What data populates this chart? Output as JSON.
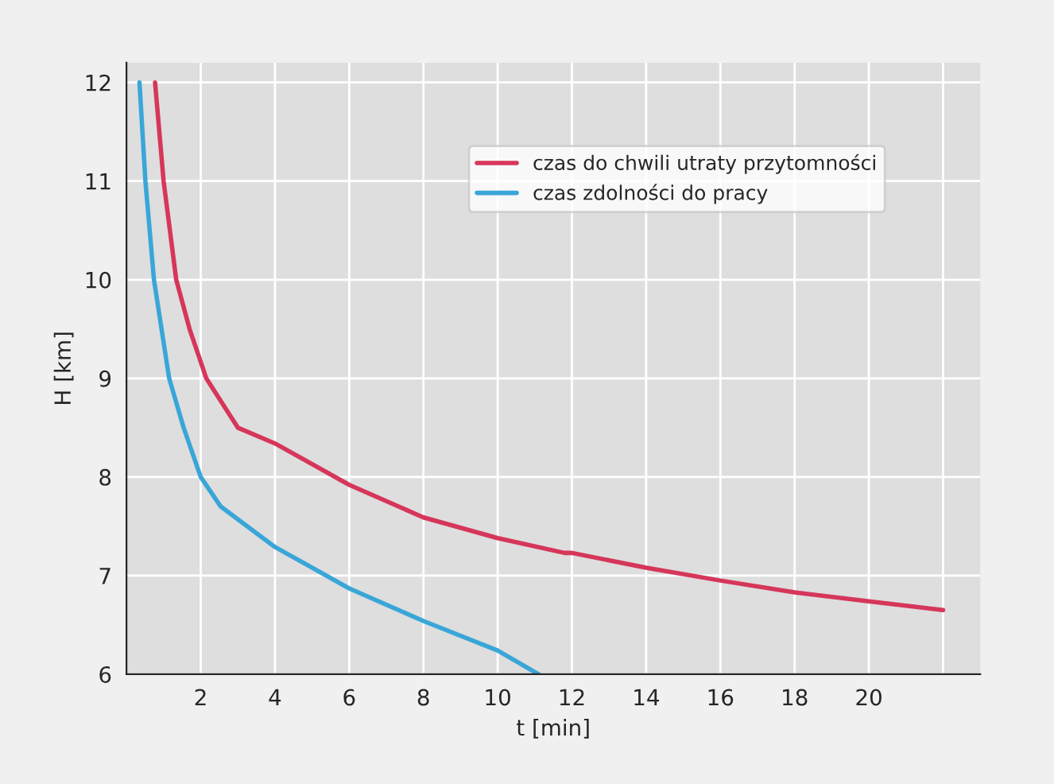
{
  "chart_data": {
    "type": "line",
    "xlabel": "t [min]",
    "ylabel": "H [km]",
    "xlim": [
      0,
      23
    ],
    "ylim": [
      6,
      12.2
    ],
    "xticks": [
      2,
      4,
      6,
      8,
      10,
      12,
      14,
      16,
      18,
      20,
      {
        "value": 22,
        "label": null
      }
    ],
    "yticks": [
      6,
      7,
      8,
      9,
      10,
      11,
      12
    ],
    "grid": true,
    "legend": "top right",
    "marker": "none",
    "line_style": "solid",
    "series": [
      {
        "name": "czas do chwili utraty przytomności",
        "color": "#d6365a",
        "x": [
          0.77,
          1.0,
          1.34,
          1.7,
          2.15,
          3.0,
          4,
          6,
          8,
          10,
          11.8,
          12,
          14,
          16,
          18,
          20,
          22
        ],
        "values": [
          12,
          11,
          10,
          9.5,
          9,
          8.5,
          8.34,
          7.92,
          7.59,
          7.38,
          7.23,
          7.23,
          7.08,
          6.95,
          6.83,
          6.74,
          6.65
        ]
      },
      {
        "name": "czas zdolności do pracy",
        "color": "#3aa6d8",
        "x": [
          0.35,
          0.51,
          0.74,
          1.15,
          1.54,
          2.0,
          2.54,
          4,
          6,
          8,
          10,
          11.1
        ],
        "values": [
          12,
          11,
          10,
          9,
          8.5,
          8,
          7.7,
          7.29,
          6.87,
          6.54,
          6.24,
          6.0
        ]
      }
    ]
  }
}
